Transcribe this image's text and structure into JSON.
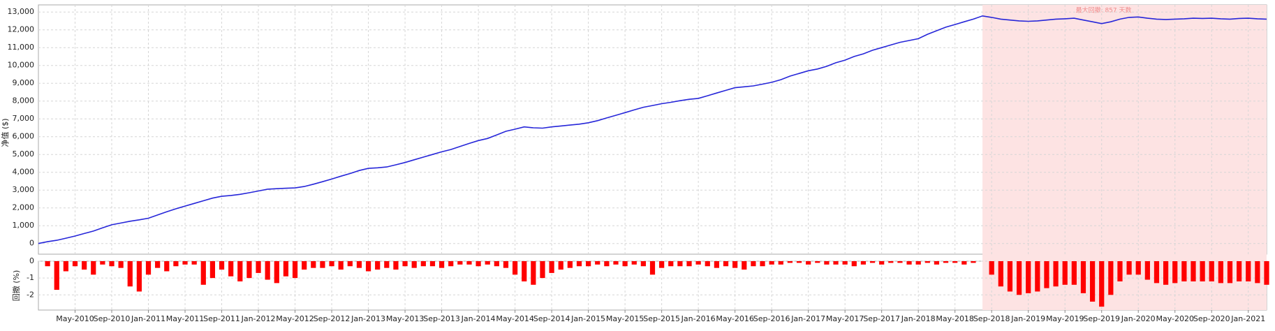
{
  "chart_data": [
    {
      "type": "line",
      "ylabel": "净值 ($)",
      "color": "#2626d9",
      "grid": true,
      "annotation": "最大回撤: 857 天数",
      "highlight": [
        "2018-08",
        "2021-03"
      ],
      "highlight_color": "#fde3e3",
      "ylim": [
        -600,
        13400
      ],
      "yticks": [
        0,
        {
          "value": 1000,
          "label": "1,000"
        },
        {
          "value": 2000,
          "label": "2,000"
        },
        {
          "value": 3000,
          "label": "3,000"
        },
        {
          "value": 4000,
          "label": "4,000"
        },
        {
          "value": 5000,
          "label": "5,000"
        },
        {
          "value": 6000,
          "label": "6,000"
        },
        {
          "value": 7000,
          "label": "7,000"
        },
        {
          "value": 8000,
          "label": "8,000"
        },
        {
          "value": 9000,
          "label": "9,000"
        },
        {
          "value": 10000,
          "label": "10,000"
        },
        {
          "value": 11000,
          "label": "11,000"
        },
        {
          "value": 12000,
          "label": "12,000"
        },
        {
          "value": 13000,
          "label": "13,000"
        }
      ],
      "x": [
        "2010-01",
        "2010-02",
        "2010-03",
        "2010-04",
        "2010-05",
        "2010-06",
        "2010-07",
        "2010-08",
        "2010-09",
        "2010-10",
        "2010-11",
        "2010-12",
        "2011-01",
        "2011-02",
        "2011-03",
        "2011-04",
        "2011-05",
        "2011-06",
        "2011-07",
        "2011-08",
        "2011-09",
        "2011-10",
        "2011-11",
        "2011-12",
        "2012-01",
        "2012-02",
        "2012-03",
        "2012-04",
        "2012-05",
        "2012-06",
        "2012-07",
        "2012-08",
        "2012-09",
        "2012-10",
        "2012-11",
        "2012-12",
        "2013-01",
        "2013-02",
        "2013-03",
        "2013-04",
        "2013-05",
        "2013-06",
        "2013-07",
        "2013-08",
        "2013-09",
        "2013-10",
        "2013-11",
        "2013-12",
        "2014-01",
        "2014-02",
        "2014-03",
        "2014-04",
        "2014-05",
        "2014-06",
        "2014-07",
        "2014-08",
        "2014-09",
        "2014-10",
        "2014-11",
        "2014-12",
        "2015-01",
        "2015-02",
        "2015-03",
        "2015-04",
        "2015-05",
        "2015-06",
        "2015-07",
        "2015-08",
        "2015-09",
        "2015-10",
        "2015-11",
        "2015-12",
        "2016-01",
        "2016-02",
        "2016-03",
        "2016-04",
        "2016-05",
        "2016-06",
        "2016-07",
        "2016-08",
        "2016-09",
        "2016-10",
        "2016-11",
        "2016-12",
        "2017-01",
        "2017-02",
        "2017-03",
        "2017-04",
        "2017-05",
        "2017-06",
        "2017-07",
        "2017-08",
        "2017-09",
        "2017-10",
        "2017-11",
        "2017-12",
        "2018-01",
        "2018-02",
        "2018-03",
        "2018-04",
        "2018-05",
        "2018-06",
        "2018-07",
        "2018-08",
        "2018-09",
        "2018-10",
        "2018-11",
        "2018-12",
        "2019-01",
        "2019-02",
        "2019-03",
        "2019-04",
        "2019-05",
        "2019-06",
        "2019-07",
        "2019-08",
        "2019-09",
        "2019-10",
        "2019-11",
        "2019-12",
        "2020-01",
        "2020-02",
        "2020-03",
        "2020-04",
        "2020-05",
        "2020-06",
        "2020-07",
        "2020-08",
        "2020-09",
        "2020-10",
        "2020-11",
        "2020-12",
        "2021-01",
        "2021-02",
        "2021-03"
      ],
      "values": [
        0,
        100,
        180,
        300,
        420,
        560,
        700,
        880,
        1050,
        1150,
        1250,
        1330,
        1420,
        1600,
        1780,
        1950,
        2100,
        2250,
        2400,
        2550,
        2650,
        2700,
        2760,
        2850,
        2950,
        3050,
        3080,
        3100,
        3120,
        3200,
        3330,
        3470,
        3620,
        3780,
        3930,
        4100,
        4220,
        4250,
        4300,
        4420,
        4550,
        4700,
        4850,
        5000,
        5150,
        5280,
        5450,
        5620,
        5780,
        5900,
        6100,
        6300,
        6420,
        6550,
        6500,
        6480,
        6550,
        6600,
        6650,
        6700,
        6780,
        6900,
        7050,
        7200,
        7350,
        7500,
        7650,
        7750,
        7850,
        7930,
        8020,
        8100,
        8150,
        8300,
        8450,
        8600,
        8750,
        8800,
        8850,
        8950,
        9050,
        9200,
        9400,
        9550,
        9700,
        9800,
        9950,
        10150,
        10300,
        10500,
        10650,
        10850,
        11000,
        11150,
        11300,
        11400,
        11500,
        11750,
        11950,
        12150,
        12300,
        12450,
        12600,
        12780,
        12700,
        12600,
        12550,
        12500,
        12480,
        12500,
        12550,
        12600,
        12620,
        12650,
        12550,
        12450,
        12350,
        12450,
        12600,
        12700,
        12720,
        12650,
        12600,
        12580,
        12600,
        12620,
        12650,
        12640,
        12650,
        12620,
        12600,
        12640,
        12650,
        12620,
        12600
      ]
    },
    {
      "type": "bar",
      "ylabel": "回撤 (%)",
      "color": "#ff0000",
      "grid": true,
      "ylim": [
        -2.9,
        0
      ],
      "yticks": [
        0,
        -1,
        -2
      ],
      "x": [
        "2010-01",
        "2010-02",
        "2010-03",
        "2010-04",
        "2010-05",
        "2010-06",
        "2010-07",
        "2010-08",
        "2010-09",
        "2010-10",
        "2010-11",
        "2010-12",
        "2011-01",
        "2011-02",
        "2011-03",
        "2011-04",
        "2011-05",
        "2011-06",
        "2011-07",
        "2011-08",
        "2011-09",
        "2011-10",
        "2011-11",
        "2011-12",
        "2012-01",
        "2012-02",
        "2012-03",
        "2012-04",
        "2012-05",
        "2012-06",
        "2012-07",
        "2012-08",
        "2012-09",
        "2012-10",
        "2012-11",
        "2012-12",
        "2013-01",
        "2013-02",
        "2013-03",
        "2013-04",
        "2013-05",
        "2013-06",
        "2013-07",
        "2013-08",
        "2013-09",
        "2013-10",
        "2013-11",
        "2013-12",
        "2014-01",
        "2014-02",
        "2014-03",
        "2014-04",
        "2014-05",
        "2014-06",
        "2014-07",
        "2014-08",
        "2014-09",
        "2014-10",
        "2014-11",
        "2014-12",
        "2015-01",
        "2015-02",
        "2015-03",
        "2015-04",
        "2015-05",
        "2015-06",
        "2015-07",
        "2015-08",
        "2015-09",
        "2015-10",
        "2015-11",
        "2015-12",
        "2016-01",
        "2016-02",
        "2016-03",
        "2016-04",
        "2016-05",
        "2016-06",
        "2016-07",
        "2016-08",
        "2016-09",
        "2016-10",
        "2016-11",
        "2016-12",
        "2017-01",
        "2017-02",
        "2017-03",
        "2017-04",
        "2017-05",
        "2017-06",
        "2017-07",
        "2017-08",
        "2017-09",
        "2017-10",
        "2017-11",
        "2017-12",
        "2018-01",
        "2018-02",
        "2018-03",
        "2018-04",
        "2018-05",
        "2018-06",
        "2018-07",
        "2018-08",
        "2018-09",
        "2018-10",
        "2018-11",
        "2018-12",
        "2019-01",
        "2019-02",
        "2019-03",
        "2019-04",
        "2019-05",
        "2019-06",
        "2019-07",
        "2019-08",
        "2019-09",
        "2019-10",
        "2019-11",
        "2019-12",
        "2020-01",
        "2020-02",
        "2020-03",
        "2020-04",
        "2020-05",
        "2020-06",
        "2020-07",
        "2020-08",
        "2020-09",
        "2020-10",
        "2020-11",
        "2020-12",
        "2021-01",
        "2021-02",
        "2021-03"
      ],
      "values": [
        0,
        -0.3,
        -1.7,
        -0.6,
        -0.3,
        -0.5,
        -0.8,
        -0.2,
        -0.3,
        -0.4,
        -1.5,
        -1.8,
        -0.8,
        -0.4,
        -0.6,
        -0.3,
        -0.2,
        -0.2,
        -1.4,
        -1.0,
        -0.5,
        -0.9,
        -1.2,
        -1.0,
        -0.7,
        -1.1,
        -1.3,
        -0.9,
        -1.0,
        -0.5,
        -0.4,
        -0.4,
        -0.3,
        -0.5,
        -0.3,
        -0.4,
        -0.6,
        -0.5,
        -0.4,
        -0.5,
        -0.3,
        -0.4,
        -0.3,
        -0.3,
        -0.4,
        -0.3,
        -0.2,
        -0.2,
        -0.3,
        -0.2,
        -0.3,
        -0.4,
        -0.8,
        -1.2,
        -1.4,
        -1.0,
        -0.7,
        -0.5,
        -0.4,
        -0.3,
        -0.3,
        -0.2,
        -0.3,
        -0.2,
        -0.3,
        -0.2,
        -0.3,
        -0.8,
        -0.4,
        -0.3,
        -0.3,
        -0.3,
        -0.2,
        -0.3,
        -0.4,
        -0.3,
        -0.4,
        -0.5,
        -0.3,
        -0.3,
        -0.2,
        -0.2,
        -0.1,
        -0.1,
        -0.2,
        -0.1,
        -0.2,
        -0.2,
        -0.2,
        -0.3,
        -0.2,
        -0.1,
        -0.2,
        -0.1,
        -0.1,
        -0.2,
        -0.2,
        -0.1,
        -0.2,
        -0.1,
        -0.1,
        -0.2,
        -0.1,
        0,
        -0.8,
        -1.5,
        -1.8,
        -2.0,
        -1.9,
        -1.8,
        -1.6,
        -1.5,
        -1.4,
        -1.4,
        -1.9,
        -2.4,
        -2.7,
        -2.0,
        -1.2,
        -0.8,
        -0.8,
        -1.1,
        -1.3,
        -1.4,
        -1.3,
        -1.2,
        -1.2,
        -1.2,
        -1.2,
        -1.3,
        -1.3,
        -1.2,
        -1.2,
        -1.3,
        -1.4
      ],
      "xticks": [
        {
          "value": "2010-05",
          "label": "May-2010"
        },
        {
          "value": "2010-09",
          "label": "Sep-2010"
        },
        {
          "value": "2011-01",
          "label": "Jan-2011"
        },
        {
          "value": "2011-05",
          "label": "May-2011"
        },
        {
          "value": "2011-09",
          "label": "Sep-2011"
        },
        {
          "value": "2012-01",
          "label": "Jan-2012"
        },
        {
          "value": "2012-05",
          "label": "May-2012"
        },
        {
          "value": "2012-09",
          "label": "Sep-2012"
        },
        {
          "value": "2013-01",
          "label": "Jan-2013"
        },
        {
          "value": "2013-05",
          "label": "May-2013"
        },
        {
          "value": "2013-09",
          "label": "Sep-2013"
        },
        {
          "value": "2014-01",
          "label": "Jan-2014"
        },
        {
          "value": "2014-05",
          "label": "May-2014"
        },
        {
          "value": "2014-09",
          "label": "Sep-2014"
        },
        {
          "value": "2015-01",
          "label": "Jan-2015"
        },
        {
          "value": "2015-05",
          "label": "May-2015"
        },
        {
          "value": "2015-09",
          "label": "Sep-2015"
        },
        {
          "value": "2016-01",
          "label": "Jan-2016"
        },
        {
          "value": "2016-05",
          "label": "May-2016"
        },
        {
          "value": "2016-09",
          "label": "Sep-2016"
        },
        {
          "value": "2017-01",
          "label": "Jan-2017"
        },
        {
          "value": "2017-05",
          "label": "May-2017"
        },
        {
          "value": "2017-09",
          "label": "Sep-2017"
        },
        {
          "value": "2018-01",
          "label": "Jan-2018"
        },
        {
          "value": "2018-05",
          "label": "May-2018"
        },
        {
          "value": "2018-09",
          "label": "Sep-2018"
        },
        {
          "value": "2019-01",
          "label": "Jan-2019"
        },
        {
          "value": "2019-05",
          "label": "May-2019"
        },
        {
          "value": "2019-09",
          "label": "Sep-2019"
        },
        {
          "value": "2020-01",
          "label": "Jan-2020"
        },
        {
          "value": "2020-05",
          "label": "May-2020"
        },
        {
          "value": "2020-09",
          "label": "Sep-2020"
        },
        {
          "value": "2021-01",
          "label": "Jan-2021"
        }
      ]
    }
  ]
}
